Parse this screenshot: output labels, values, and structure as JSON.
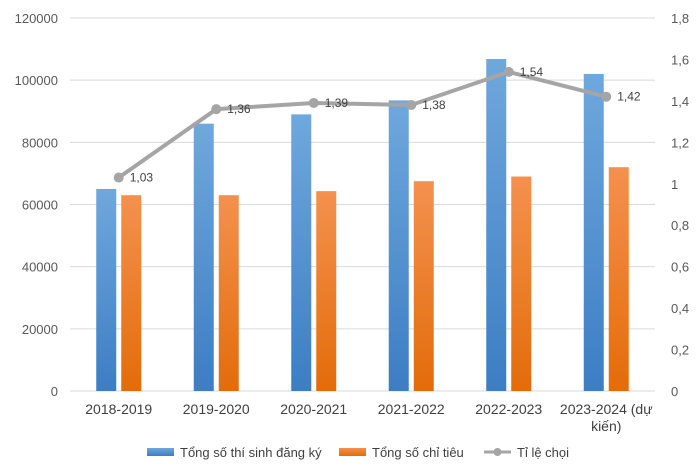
{
  "chart_data": {
    "type": "bar",
    "categories": [
      "2018-2019",
      "2019-2020",
      "2020-2021",
      "2021-2022",
      "2022-2023",
      "2023-2024 (dự kiến)"
    ],
    "category_lines": [
      [
        "2018-2019"
      ],
      [
        "2019-2020"
      ],
      [
        "2020-2021"
      ],
      [
        "2021-2022"
      ],
      [
        "2022-2023"
      ],
      [
        "2023-2024 (dự",
        "kiến)"
      ]
    ],
    "series": [
      {
        "name": "Tổng số thí sinh đăng ký",
        "type": "bar",
        "axis": "left",
        "color": "#5B9BD5",
        "values": [
          65000,
          86000,
          89000,
          93500,
          106800,
          102000
        ]
      },
      {
        "name": "Tổng số chỉ tiêu",
        "type": "bar",
        "axis": "left",
        "color": "#ED7D31",
        "values": [
          63000,
          63000,
          64300,
          67500,
          69000,
          72000
        ]
      },
      {
        "name": "Tỉ lệ chọi",
        "type": "line",
        "axis": "right",
        "color": "#A5A5A5",
        "values": [
          1.03,
          1.36,
          1.39,
          1.38,
          1.54,
          1.42
        ],
        "labels": [
          "1,03",
          "1,36",
          "1,39",
          "1,38",
          "1,54",
          "1,42"
        ]
      }
    ],
    "y_left": {
      "min": 0,
      "max": 120000,
      "ticks": [
        0,
        20000,
        40000,
        60000,
        80000,
        100000,
        120000
      ],
      "tick_labels": [
        "0",
        "20000",
        "40000",
        "60000",
        "80000",
        "100000",
        "120000"
      ]
    },
    "y_right": {
      "min": 0,
      "max": 1.8,
      "ticks": [
        0,
        0.2,
        0.4,
        0.6,
        0.8,
        1.0,
        1.2,
        1.4,
        1.6,
        1.8
      ],
      "tick_labels": [
        "0",
        "0,2",
        "0,4",
        "0,6",
        "0,8",
        "1",
        "1,2",
        "1,4",
        "1,6",
        "1,8"
      ]
    },
    "grid": true,
    "legend_position": "bottom"
  }
}
